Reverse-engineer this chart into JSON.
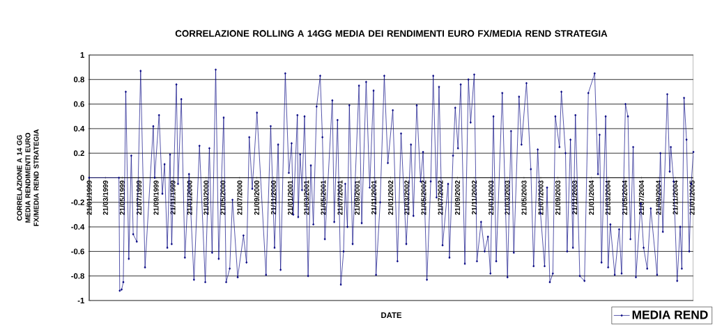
{
  "chart_data": {
    "type": "line",
    "title": "CORRELAZIONE ROLLING A 14GG MEDIA DEI RENDIMENTI EURO FX/MEDIA REND STRATEGIA",
    "xlabel": "DATE",
    "ylabel": "CORRELAZIONE A 14 GG MEDIA RENDIMENTI EURO FX/MEDIA REND STRATEGIA",
    "x": [
      "1999-01-21",
      "1999-05-09",
      "1999-05-12",
      "1999-05-19",
      "1999-05-25",
      "1999-06-03",
      "1999-06-14",
      "1999-06-23",
      "1999-06-30",
      "1999-07-13",
      "1999-07-27",
      "1999-08-12",
      "1999-09-11",
      "1999-09-16",
      "1999-10-02",
      "1999-10-14",
      "1999-10-22",
      "1999-11-01",
      "1999-11-11",
      "1999-11-17",
      "1999-12-04",
      "1999-12-10",
      "1999-12-22",
      "2000-01-04",
      "2000-01-19",
      "2000-02-06",
      "2000-02-26",
      "2000-03-18",
      "2000-04-02",
      "2000-04-12",
      "2000-04-25",
      "2000-05-06",
      "2000-05-24",
      "2000-06-02",
      "2000-06-15",
      "2000-06-25",
      "2000-07-14",
      "2000-08-04",
      "2000-08-15",
      "2000-08-25",
      "2000-09-05",
      "2000-09-22",
      "2000-10-25",
      "2000-11-11",
      "2000-11-25",
      "2000-12-08",
      "2000-12-17",
      "2001-01-03",
      "2001-01-16",
      "2001-01-26",
      "2001-02-01",
      "2001-02-16",
      "2001-02-19",
      "2001-02-26",
      "2001-03-05",
      "2001-03-14",
      "2001-03-27",
      "2001-04-06",
      "2001-04-15",
      "2001-04-27",
      "2001-05-10",
      "2001-05-18",
      "2001-05-27",
      "2001-06-23",
      "2001-06-30",
      "2001-07-12",
      "2001-07-24",
      "2001-08-03",
      "2001-08-09",
      "2001-08-17",
      "2001-08-24",
      "2001-09-05",
      "2001-09-28",
      "2001-10-08",
      "2001-10-24",
      "2001-11-06",
      "2001-11-20",
      "2001-11-29",
      "2001-12-14",
      "2001-12-29",
      "2002-01-11",
      "2002-01-29",
      "2002-02-15",
      "2002-02-28",
      "2002-03-19",
      "2002-04-05",
      "2002-04-14",
      "2002-04-26",
      "2002-05-10",
      "2002-05-19",
      "2002-06-02",
      "2002-06-16",
      "2002-06-25",
      "2002-07-07",
      "2002-07-16",
      "2002-07-29",
      "2002-08-18",
      "2002-08-23",
      "2002-09-05",
      "2002-09-13",
      "2002-09-23",
      "2002-10-03",
      "2002-10-18",
      "2002-10-31",
      "2002-11-08",
      "2002-11-21",
      "2002-12-01",
      "2002-12-16",
      "2002-12-29",
      "2003-01-10",
      "2003-01-19",
      "2003-01-30",
      "2003-02-09",
      "2003-03-03",
      "2003-03-22",
      "2003-04-04",
      "2003-04-14",
      "2003-05-03",
      "2003-05-12",
      "2003-05-30",
      "2003-06-15",
      "2003-06-25",
      "2003-07-10",
      "2003-07-20",
      "2003-08-04",
      "2003-08-13",
      "2003-08-23",
      "2003-09-03",
      "2003-09-12",
      "2003-09-27",
      "2003-10-04",
      "2003-10-19",
      "2003-10-25",
      "2003-11-06",
      "2003-11-15",
      "2003-11-24",
      "2003-12-10",
      "2003-12-27",
      "2004-01-10",
      "2004-02-02",
      "2004-02-14",
      "2004-02-20",
      "2004-02-27",
      "2004-03-13",
      "2004-03-22",
      "2004-03-30",
      "2004-04-15",
      "2004-05-01",
      "2004-05-10",
      "2004-05-24",
      "2004-06-02",
      "2004-06-11",
      "2004-06-21",
      "2004-07-01",
      "2004-07-19",
      "2004-07-29",
      "2004-08-11",
      "2004-08-24",
      "2004-09-16",
      "2004-09-28",
      "2004-10-07",
      "2004-10-23",
      "2004-11-01",
      "2004-11-05",
      "2004-11-15",
      "2004-11-28",
      "2004-12-09",
      "2004-12-15",
      "2004-12-23",
      "2005-01-01",
      "2005-01-11",
      "2005-01-18",
      "2005-01-26"
    ],
    "series": [
      {
        "name": "MEDIA REND",
        "color": "#000080",
        "values": [
          0,
          0,
          -0.92,
          -0.91,
          -0.85,
          0.7,
          -0.66,
          0.18,
          -0.46,
          -0.52,
          0.87,
          -0.73,
          0.42,
          0.0,
          0.51,
          -0.13,
          0.11,
          -0.57,
          0.19,
          -0.54,
          0.76,
          -0.05,
          0.64,
          -0.65,
          0.03,
          -0.83,
          0.26,
          -0.85,
          0.24,
          -0.61,
          0.88,
          -0.66,
          0.49,
          -0.85,
          -0.74,
          -0.18,
          -0.81,
          -0.47,
          -0.69,
          0.33,
          -0.09,
          0.53,
          -0.79,
          0.42,
          -0.57,
          0.27,
          -0.75,
          0.85,
          0.04,
          0.28,
          -0.3,
          0.51,
          -0.32,
          0.19,
          -0.1,
          0.5,
          -0.8,
          0.1,
          -0.38,
          0.58,
          0.83,
          0.33,
          -0.5,
          0.63,
          -0.36,
          0.47,
          -0.87,
          -0.6,
          -0.05,
          -0.4,
          0.59,
          -0.54,
          0.75,
          -0.37,
          0.78,
          -0.08,
          0.71,
          -0.79,
          -0.2,
          0.83,
          0.12,
          0.55,
          -0.68,
          0.36,
          -0.54,
          0.27,
          -0.31,
          0.59,
          -0.03,
          0.21,
          -0.83,
          -0.03,
          0.83,
          -0.16,
          0.74,
          -0.55,
          -0.05,
          -0.65,
          0.18,
          0.57,
          0.24,
          0.76,
          -0.7,
          0.8,
          0.45,
          0.84,
          -0.68,
          -0.36,
          -0.6,
          -0.48,
          -0.78,
          0.5,
          -0.68,
          0.69,
          -0.81,
          0.38,
          -0.61,
          0.66,
          0.27,
          0.77,
          0.07,
          -0.72,
          0.23,
          -0.29,
          -0.72,
          -0.08,
          -0.85,
          -0.78,
          0.5,
          0.25,
          0.7,
          0.2,
          -0.6,
          0.31,
          -0.57,
          0.51,
          -0.8,
          -0.84,
          0.69,
          0.85,
          0.03,
          0.35,
          -0.69,
          0.5,
          -0.73,
          -0.38,
          -0.79,
          -0.42,
          -0.78,
          0.6,
          0.5,
          -0.5,
          0.25,
          -0.81,
          -0.21,
          -0.57,
          -0.74,
          -0.25,
          -0.79,
          0.2,
          -0.44,
          0.68,
          0.05,
          0.25,
          -0.03,
          -0.84,
          -0.4,
          -0.74,
          0.65,
          0.31,
          -0.6,
          -0.05,
          0.21
        ]
      }
    ],
    "xlim": [
      "1999-01-21",
      "2005-01-26"
    ],
    "xticks": [
      {
        "value": "1999-01-21",
        "label": "21/01/1999"
      },
      {
        "value": "1999-03-21",
        "label": "21/03/1999"
      },
      {
        "value": "1999-05-21",
        "label": "21/05/1999"
      },
      {
        "value": "1999-07-21",
        "label": "21/07/1999"
      },
      {
        "value": "1999-09-21",
        "label": "21/09/1999"
      },
      {
        "value": "1999-11-21",
        "label": "21/11/1999"
      },
      {
        "value": "2000-01-21",
        "label": "21/01/2000"
      },
      {
        "value": "2000-03-21",
        "label": "21/03/2000"
      },
      {
        "value": "2000-05-21",
        "label": "21/05/2000"
      },
      {
        "value": "2000-07-21",
        "label": "21/07/2000"
      },
      {
        "value": "2000-09-21",
        "label": "21/09/2000"
      },
      {
        "value": "2000-11-21",
        "label": "21/11/2000"
      },
      {
        "value": "2001-01-21",
        "label": "21/01/2001"
      },
      {
        "value": "2001-03-21",
        "label": "21/03/2001"
      },
      {
        "value": "2001-05-21",
        "label": "21/05/2001"
      },
      {
        "value": "2001-07-21",
        "label": "21/07/2001"
      },
      {
        "value": "2001-09-21",
        "label": "21/09/2001"
      },
      {
        "value": "2001-11-21",
        "label": "21/11/2001"
      },
      {
        "value": "2002-01-21",
        "label": "21/01/2002"
      },
      {
        "value": "2002-03-21",
        "label": "21/03/2002"
      },
      {
        "value": "2002-05-21",
        "label": "21/05/2002"
      },
      {
        "value": "2002-07-21",
        "label": "21/07/2002"
      },
      {
        "value": "2002-09-21",
        "label": "21/09/2002"
      },
      {
        "value": "2002-11-21",
        "label": "21/11/2002"
      },
      {
        "value": "2003-01-21",
        "label": "21/01/2003"
      },
      {
        "value": "2003-03-21",
        "label": "21/03/2003"
      },
      {
        "value": "2003-05-21",
        "label": "21/05/2003"
      },
      {
        "value": "2003-07-21",
        "label": "21/07/2003"
      },
      {
        "value": "2003-09-21",
        "label": "21/09/2003"
      },
      {
        "value": "2003-11-21",
        "label": "21/11/2003"
      },
      {
        "value": "2004-01-21",
        "label": "21/01/2004"
      },
      {
        "value": "2004-03-21",
        "label": "21/03/2004"
      },
      {
        "value": "2004-05-21",
        "label": "21/05/2004"
      },
      {
        "value": "2004-07-21",
        "label": "21/07/2004"
      },
      {
        "value": "2004-09-21",
        "label": "21/09/2004"
      },
      {
        "value": "2004-11-21",
        "label": "21/11/2004"
      },
      {
        "value": "2005-01-21",
        "label": "21/01/2005"
      }
    ],
    "ylim": [
      -1,
      1
    ],
    "yticks": [
      -1,
      -0.8,
      -0.6,
      -0.4,
      -0.2,
      0,
      0.2,
      0.4,
      0.6,
      0.8,
      1
    ],
    "grid": "y",
    "legend": "bottom right",
    "marker": "diamond"
  }
}
